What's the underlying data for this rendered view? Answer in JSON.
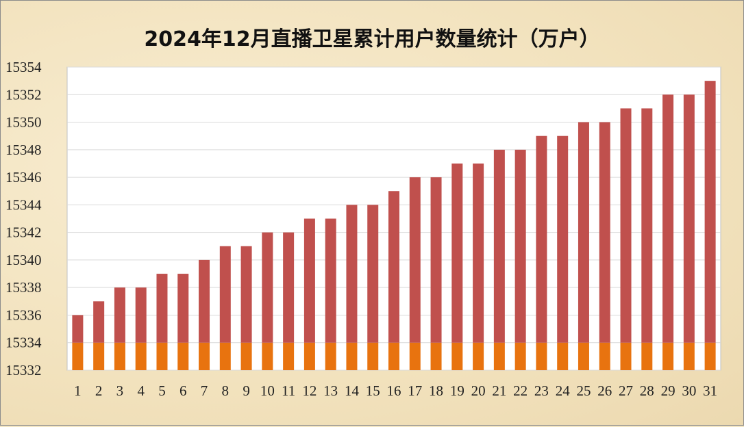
{
  "chart_data": {
    "type": "bar",
    "stacked": true,
    "title": "2024年12月直播卫星累计用户数量统计（万户）",
    "categories": [
      "1",
      "2",
      "3",
      "4",
      "5",
      "6",
      "7",
      "8",
      "9",
      "10",
      "11",
      "12",
      "13",
      "14",
      "15",
      "16",
      "17",
      "18",
      "19",
      "20",
      "21",
      "22",
      "23",
      "24",
      "25",
      "26",
      "27",
      "28",
      "29",
      "30",
      "31"
    ],
    "values": [
      15336,
      15337,
      15338,
      15338,
      15339,
      15339,
      15340,
      15341,
      15341,
      15342,
      15342,
      15343,
      15343,
      15344,
      15344,
      15345,
      15346,
      15346,
      15347,
      15347,
      15348,
      15348,
      15349,
      15349,
      15350,
      15350,
      15351,
      15351,
      15352,
      15352,
      15353
    ],
    "base_segment_top": 15334,
    "ylim": [
      15332,
      15354
    ],
    "y_ticks": [
      "15332",
      "15334",
      "15336",
      "15338",
      "15340",
      "15342",
      "15344",
      "15346",
      "15348",
      "15350",
      "15352",
      "15354"
    ],
    "grid": true,
    "colors": {
      "base": "#e8730f",
      "top": "#c0504d",
      "grid": "#d9d9d9",
      "plot_bg": "#ffffff"
    }
  }
}
